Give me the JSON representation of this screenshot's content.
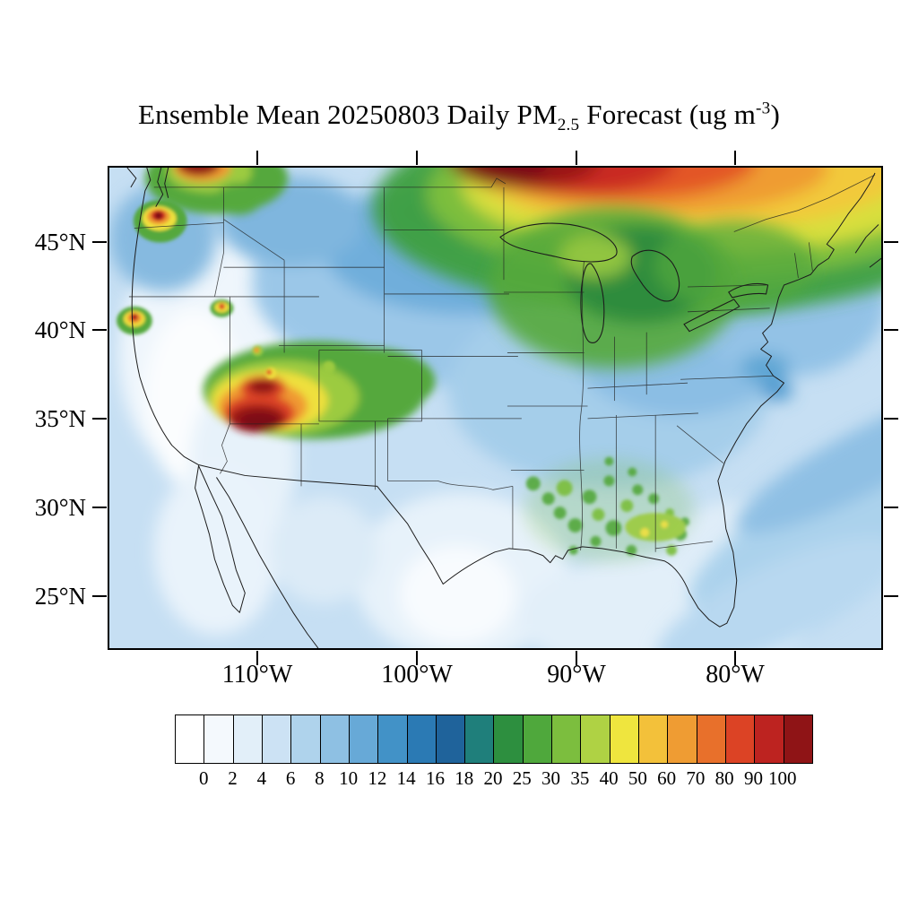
{
  "title": {
    "prefix": "Ensemble Mean 20250803 Daily PM",
    "subscript": "2.5",
    "middle": " Forecast (ug m",
    "superscript": "-3",
    "suffix": ")"
  },
  "y_axis": {
    "ticks": [
      "45°N",
      "40°N",
      "35°N",
      "30°N",
      "25°N"
    ]
  },
  "x_axis": {
    "ticks": [
      "110°W",
      "100°W",
      "90°W",
      "80°W"
    ]
  },
  "colorbar": {
    "labels": [
      "0",
      "2",
      "4",
      "6",
      "8",
      "10",
      "12",
      "14",
      "16",
      "18",
      "20",
      "25",
      "30",
      "35",
      "40",
      "50",
      "60",
      "70",
      "80",
      "90",
      "100"
    ],
    "colors": [
      "#FFFFFF",
      "#F4F9FD",
      "#E2EFF9",
      "#CCE2F4",
      "#AFD3EC",
      "#8EC0E3",
      "#67A9D7",
      "#4292C7",
      "#2B7AB4",
      "#1F639B",
      "#1F7F7B",
      "#2D8F3F",
      "#4FA83C",
      "#7CBE3E",
      "#AFD244",
      "#EFE53E",
      "#F3C13A",
      "#EF9C33",
      "#E8702B",
      "#DC4325",
      "#BD2320",
      "#8F1416"
    ]
  },
  "chart_data": {
    "type": "heatmap",
    "title": "Ensemble Mean 20250803 Daily PM2.5 Forecast (ug m-3)",
    "statistic": "Ensemble Mean",
    "forecast_date": "20250803",
    "variable": "Daily PM2.5",
    "units": "ug m-3",
    "region": "Contiguous United States with adjacent Canada and Mexico",
    "x_axis_ticks": [
      "110°W",
      "100°W",
      "90°W",
      "80°W"
    ],
    "y_axis_ticks": [
      "45°N",
      "40°N",
      "35°N",
      "30°N",
      "25°N"
    ],
    "levels_ug_m3": [
      0,
      2,
      4,
      6,
      8,
      10,
      12,
      14,
      16,
      18,
      20,
      25,
      30,
      35,
      40,
      50,
      60,
      70,
      80,
      90,
      100
    ],
    "palette": [
      "#FFFFFF",
      "#F4F9FD",
      "#E2EFF9",
      "#CCE2F4",
      "#AFD3EC",
      "#8EC0E3",
      "#67A9D7",
      "#4292C7",
      "#2B7AB4",
      "#1F639B",
      "#1F7F7B",
      "#2D8F3F",
      "#4FA83C",
      "#7CBE3E",
      "#AFD244",
      "#EFE53E",
      "#F3C13A",
      "#EF9C33",
      "#E8702B",
      "#DC4325",
      "#BD2320",
      "#8F1416"
    ],
    "legend_position": "bottom",
    "grid": false,
    "hotspots": [
      {
        "region": "Southern Canada smoke plume along northern border, spreading southeast over Great Lakes and Northeast",
        "approx_value_ug_m3": "40 to >100"
      },
      {
        "region": "Southern Utah / northern Arizona wildfire complex",
        "approx_value_ug_m3": "80 to >100"
      },
      {
        "region": "Northwest Washington / British Columbia border",
        "approx_value_ug_m3": "90 to >100"
      },
      {
        "region": "Puget Sound (Seattle), Washington",
        "approx_value_ug_m3": "70-100"
      },
      {
        "region": "Northern California coast",
        "approx_value_ug_m3": "60-90"
      },
      {
        "region": "Small spots in Idaho / northern Utah",
        "approx_value_ug_m3": "30-70"
      },
      {
        "region": "Wisconsin / Michigan / Great Lakes band",
        "approx_value_ug_m3": "16-30"
      },
      {
        "region": "Scattered cells over Mississippi / Alabama / Georgia / Florida panhandle",
        "approx_value_ug_m3": "18-35"
      },
      {
        "region": "Great Basin, Nevada and southern Texas background minima",
        "approx_value_ug_m3": "0-4"
      },
      {
        "region": "Central plains and eastern US background",
        "approx_value_ug_m3": "6-14"
      }
    ]
  }
}
